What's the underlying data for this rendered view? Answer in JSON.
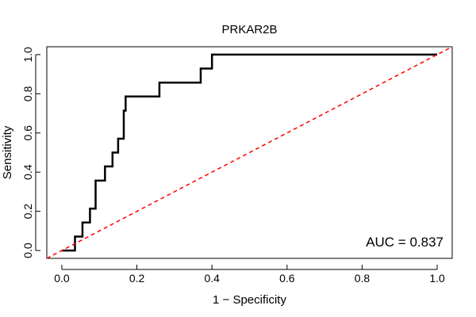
{
  "chart_data": {
    "type": "line",
    "title": "PRKAR2B",
    "xlabel": "1 − Specificity",
    "ylabel": "Sensitivity",
    "xlim": [
      -0.04,
      1.04
    ],
    "ylim": [
      -0.04,
      1.04
    ],
    "x_ticks": [
      0.0,
      0.2,
      0.4,
      0.6,
      0.8,
      1.0
    ],
    "x_tick_labels": [
      "0.0",
      "0.2",
      "0.4",
      "0.6",
      "0.8",
      "1.0"
    ],
    "y_ticks": [
      0.0,
      0.2,
      0.4,
      0.6,
      0.8,
      1.0
    ],
    "y_tick_labels": [
      "0.0",
      "0.2",
      "0.4",
      "0.6",
      "0.8",
      "1.0"
    ],
    "grid": false,
    "annotation": "AUC = 0.837",
    "series": [
      {
        "name": "ROC",
        "color": "#000000",
        "style": "solid",
        "x": [
          0.0,
          0.035,
          0.035,
          0.055,
          0.055,
          0.075,
          0.075,
          0.09,
          0.09,
          0.115,
          0.115,
          0.135,
          0.135,
          0.15,
          0.15,
          0.165,
          0.165,
          0.17,
          0.17,
          0.26,
          0.26,
          0.37,
          0.37,
          0.4,
          0.4,
          1.0
        ],
        "y": [
          0.0,
          0.0,
          0.071,
          0.071,
          0.143,
          0.143,
          0.214,
          0.214,
          0.357,
          0.357,
          0.429,
          0.429,
          0.5,
          0.5,
          0.571,
          0.571,
          0.714,
          0.714,
          0.786,
          0.786,
          0.857,
          0.857,
          0.929,
          0.929,
          1.0,
          1.0
        ]
      },
      {
        "name": "Reference",
        "color": "#ff0000",
        "style": "dashed",
        "x": [
          -0.04,
          1.04
        ],
        "y": [
          -0.04,
          1.04
        ]
      }
    ]
  }
}
